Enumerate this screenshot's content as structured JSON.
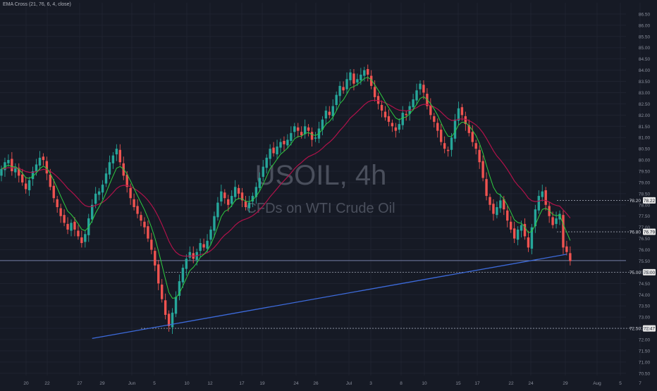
{
  "colors": {
    "background": "#161a25",
    "grid": "#1f2330",
    "up": "#26a69a",
    "down": "#ef5350",
    "ema_fast": "#2ecc40",
    "ema_slow": "#b0124a",
    "trendline": "#3d6bdc",
    "horizontal": "#8c97c8",
    "axis_text": "#8a8f9c",
    "level_text": "#d1d4dc",
    "watermark": "#4a4f5c"
  },
  "chart_data": {
    "type": "candlestick",
    "legend": "EMA Cross (21, 76, 6, 4, close)",
    "watermark": {
      "symbol": "USOIL, 4h",
      "description": "CFDs on WTI Crude Oil"
    },
    "x_ticks": [
      "20",
      "22",
      "27",
      "29",
      "Jun",
      "5",
      "10",
      "12",
      "17",
      "19",
      "24",
      "26",
      "Jul",
      "3",
      "8",
      "10",
      "15",
      "17",
      "22",
      "24",
      "29",
      "Aug",
      "5",
      "7"
    ],
    "y_ticks": [
      "86.50",
      "86.00",
      "85.50",
      "85.00",
      "84.50",
      "84.00",
      "83.50",
      "83.00",
      "82.50",
      "82.00",
      "81.50",
      "81.00",
      "80.50",
      "80.00",
      "79.50",
      "79.00",
      "78.50",
      "78.00",
      "77.50",
      "77.00",
      "76.50",
      "76.00",
      "75.50",
      "75.00",
      "74.50",
      "74.00",
      "73.50",
      "73.00",
      "72.50",
      "72.00",
      "71.50",
      "71.00",
      "70.50"
    ],
    "y_range": [
      70.4,
      87.0
    ],
    "price_levels": [
      {
        "label": "78.20",
        "value": 78.2,
        "style": "dashed",
        "tag": "78.22"
      },
      {
        "label": "76.80",
        "value": 76.8,
        "style": "dashed",
        "tag": "76.79"
      },
      {
        "label": "75.00",
        "value": 75.0,
        "style": "dashed",
        "tag": "75.00"
      },
      {
        "label": "72.50",
        "value": 72.5,
        "style": "dashed",
        "tag": "72.47"
      }
    ],
    "horizontal_line": {
      "value": 75.52
    },
    "trendline": {
      "start": {
        "t": 26,
        "price": 72.05
      },
      "end": {
        "t": 162,
        "price": 75.8
      }
    },
    "series": [
      {
        "name": "USOIL",
        "close": [
          79.6,
          79.9,
          80.0,
          79.5,
          79.7,
          79.3,
          79.0,
          78.7,
          79.1,
          79.5,
          79.8,
          80.1,
          80.0,
          79.4,
          78.8,
          78.3,
          77.9,
          77.5,
          77.2,
          76.9,
          77.2,
          76.9,
          76.6,
          76.3,
          76.7,
          77.4,
          78.0,
          78.5,
          78.6,
          78.9,
          79.4,
          79.9,
          80.2,
          80.5,
          79.9,
          79.3,
          78.8,
          78.3,
          77.9,
          77.6,
          77.3,
          77.0,
          76.5,
          76.0,
          75.3,
          74.5,
          73.8,
          73.1,
          72.6,
          73.2,
          73.9,
          74.6,
          75.2,
          75.6,
          75.9,
          75.6,
          75.9,
          76.3,
          76.1,
          76.4,
          76.9,
          77.5,
          78.1,
          78.6,
          78.3,
          78.0,
          78.4,
          78.8,
          78.5,
          78.2,
          77.9,
          78.1,
          78.4,
          78.8,
          79.2,
          79.7,
          80.1,
          80.5,
          80.3,
          80.6,
          80.8,
          80.7,
          80.9,
          81.2,
          81.5,
          81.3,
          81.1,
          81.5,
          81.3,
          80.9,
          81.0,
          81.4,
          81.8,
          82.2,
          82.0,
          82.4,
          82.9,
          83.3,
          83.1,
          83.6,
          83.9,
          83.4,
          83.6,
          83.8,
          84.0,
          83.8,
          83.3,
          82.8,
          82.5,
          82.2,
          81.9,
          81.7,
          81.5,
          81.3,
          81.6,
          82.1,
          82.0,
          82.4,
          82.7,
          83.1,
          83.4,
          83.0,
          82.4,
          82.0,
          81.7,
          81.3,
          80.8,
          80.5,
          80.4,
          81.0,
          81.8,
          82.3,
          82.0,
          81.6,
          81.2,
          80.8,
          80.5,
          79.9,
          79.2,
          78.4,
          78.0,
          77.6,
          77.9,
          78.2,
          77.8,
          77.3,
          76.9,
          76.5,
          76.9,
          77.1,
          76.6,
          76.1,
          77.0,
          77.8,
          78.4,
          78.6,
          78.0,
          77.5,
          77.1,
          77.4,
          77.6,
          76.1,
          75.9,
          75.5
        ]
      },
      {
        "name": "EMA fast"
      },
      {
        "name": "EMA slow"
      }
    ]
  }
}
